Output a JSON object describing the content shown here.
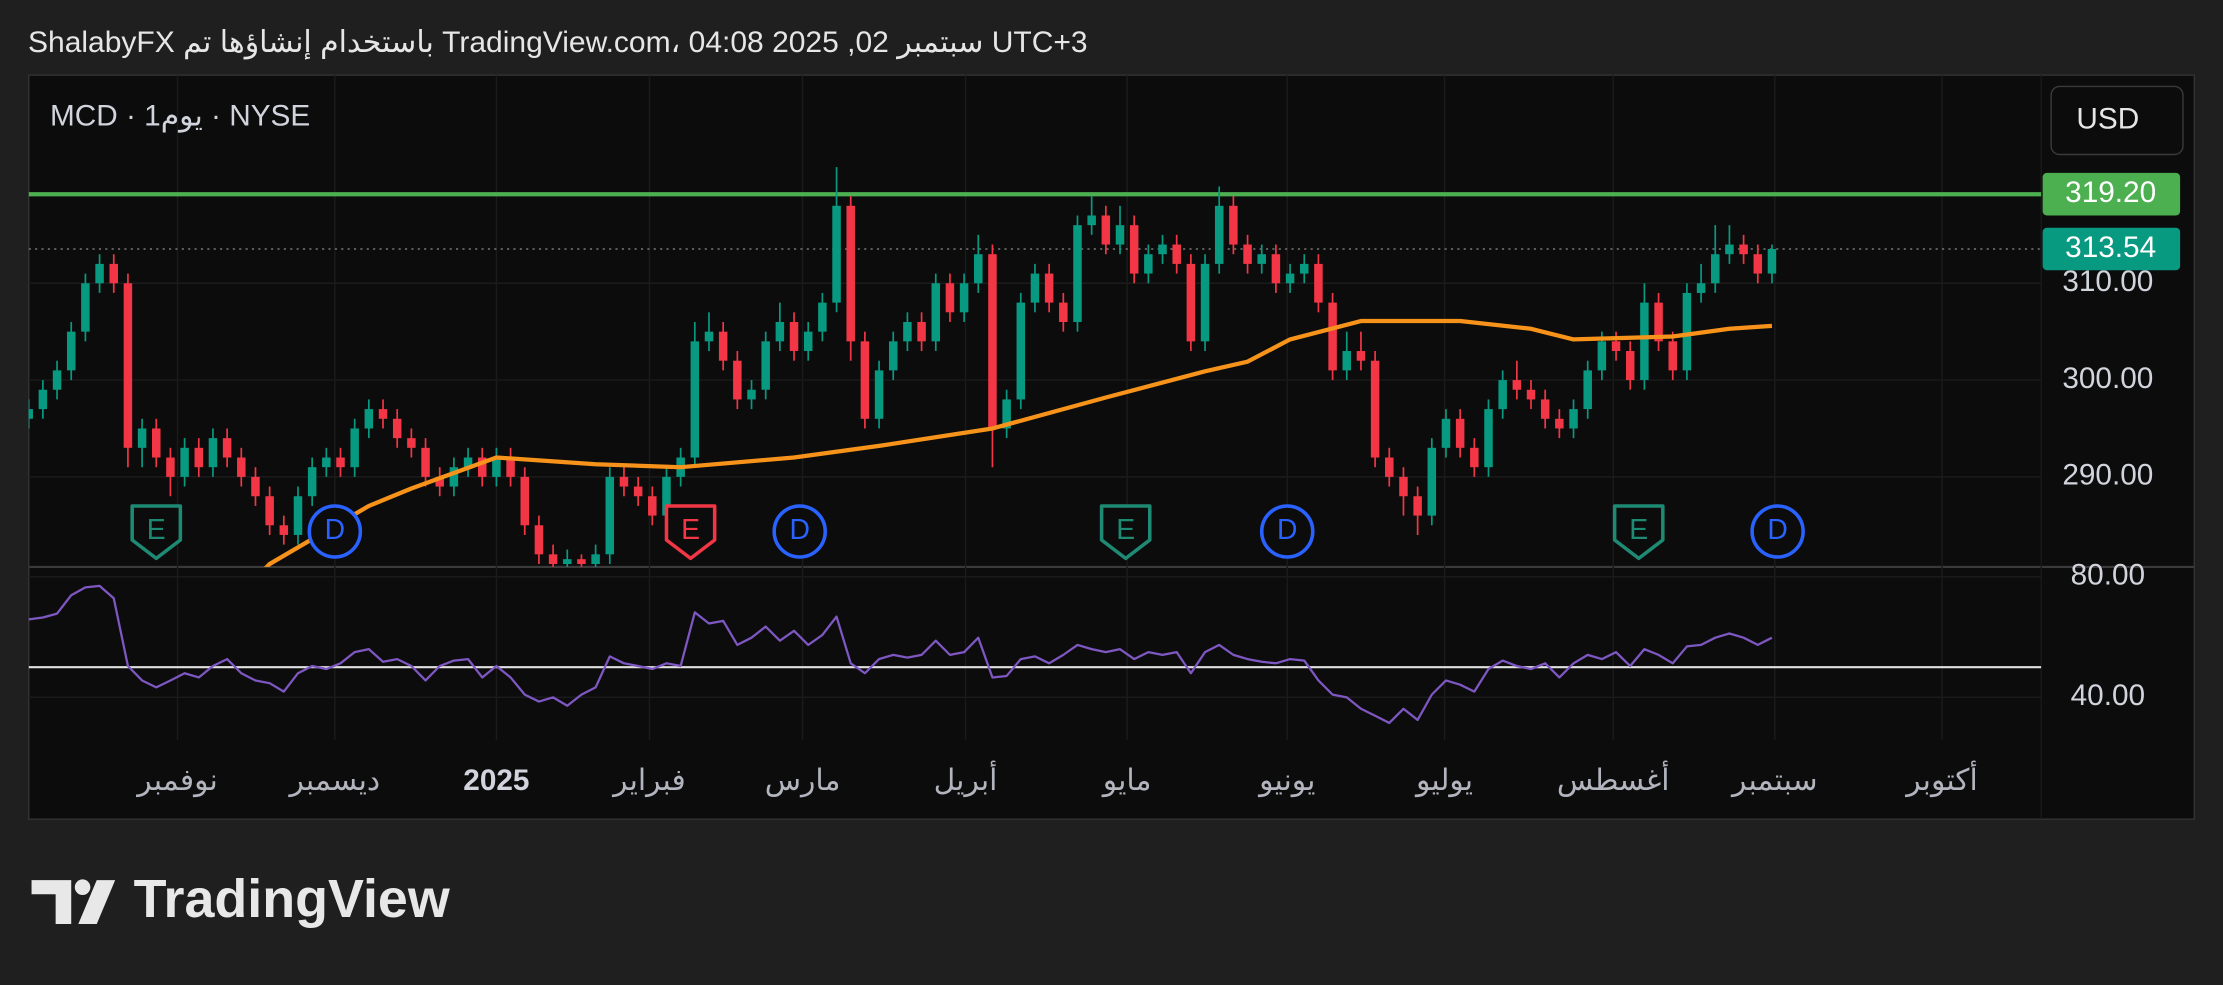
{
  "header": {
    "text": "UTC+3 سبتمبر 02, 2025 04:08 ،TradingView.com باستخدام إنشاؤها تم ShalabyFX"
  },
  "footer": {
    "brand": "TradingView"
  },
  "chart_data": [
    {
      "type": "candlestick",
      "symbol": "MCD · 1يوم · NYSE",
      "currency": "USD",
      "xlim": [
        0,
        142
      ],
      "xticks": [
        {
          "value": 10.5,
          "label": "نوفمبر"
        },
        {
          "value": 21.6,
          "label": "ديسمبر"
        },
        {
          "value": 33,
          "label": "2025"
        },
        {
          "value": 43.8,
          "label": "فبراير"
        },
        {
          "value": 54.6,
          "label": "مارس"
        },
        {
          "value": 66.1,
          "label": "أبريل"
        },
        {
          "value": 77.5,
          "label": "مايو"
        },
        {
          "value": 88.8,
          "label": "يونيو"
        },
        {
          "value": 99.9,
          "label": "يوليو"
        },
        {
          "value": 111.8,
          "label": "أغسطس"
        },
        {
          "value": 123.2,
          "label": "سبتمبر"
        },
        {
          "value": 135,
          "label": "أكتوبر"
        }
      ],
      "ylim": [
        280.7,
        331.5
      ],
      "yticks": [
        {
          "value": 290,
          "label": "290.00"
        },
        {
          "value": 300,
          "label": "300.00"
        },
        {
          "value": 310,
          "label": "310.00"
        }
      ],
      "grid": true,
      "up_color": "#089981",
      "down_color": "#f23645",
      "last_color": "#089981",
      "ohlc": [
        [
          296,
          298,
          295,
          297
        ],
        [
          297,
          300,
          296,
          299
        ],
        [
          299,
          302,
          298,
          301
        ],
        [
          301,
          306,
          300,
          305
        ],
        [
          305,
          311,
          304,
          310
        ],
        [
          310,
          313,
          309,
          312
        ],
        [
          312,
          313,
          309,
          310
        ],
        [
          310,
          311,
          291,
          293
        ],
        [
          293,
          296,
          291,
          295
        ],
        [
          295,
          296,
          291,
          292
        ],
        [
          292,
          293,
          288,
          290
        ],
        [
          290,
          294,
          289,
          293
        ],
        [
          293,
          294,
          290,
          291
        ],
        [
          291,
          295,
          290,
          294
        ],
        [
          294,
          295,
          291,
          292
        ],
        [
          292,
          293,
          289,
          290
        ],
        [
          290,
          291,
          287,
          288
        ],
        [
          288,
          289,
          284,
          285
        ],
        [
          285,
          286,
          283,
          284
        ],
        [
          284,
          289,
          283,
          288
        ],
        [
          288,
          292,
          287,
          291
        ],
        [
          291,
          293,
          290,
          292
        ],
        [
          292,
          293,
          290,
          291
        ],
        [
          291,
          296,
          290,
          295
        ],
        [
          295,
          298,
          294,
          297
        ],
        [
          297,
          298,
          295,
          296
        ],
        [
          296,
          297,
          293,
          294
        ],
        [
          294,
          295,
          292,
          293
        ],
        [
          293,
          294,
          289,
          290
        ],
        [
          290,
          291,
          288,
          289
        ],
        [
          289,
          292,
          288,
          291
        ],
        [
          291,
          293,
          290,
          292
        ],
        [
          292,
          293,
          289,
          290
        ],
        [
          290,
          293,
          289,
          292
        ],
        [
          292,
          293,
          289,
          290
        ],
        [
          290,
          291,
          284,
          285
        ],
        [
          285,
          286,
          281,
          282
        ],
        [
          282,
          283,
          280,
          281
        ],
        [
          281,
          282.5,
          280.5,
          281.5
        ],
        [
          281.5,
          282,
          280,
          281
        ],
        [
          281,
          283,
          280,
          282
        ],
        [
          282,
          291,
          281,
          290
        ],
        [
          290,
          291,
          288,
          289
        ],
        [
          289,
          290,
          287,
          288
        ],
        [
          288,
          289,
          285,
          286
        ],
        [
          286,
          291,
          285,
          290
        ],
        [
          290,
          293,
          289,
          292
        ],
        [
          292,
          306,
          291,
          304
        ],
        [
          304,
          307,
          303,
          305
        ],
        [
          305,
          306,
          301,
          302
        ],
        [
          302,
          303,
          297,
          298
        ],
        [
          298,
          300,
          297,
          299
        ],
        [
          299,
          305,
          298,
          304
        ],
        [
          304,
          308,
          303,
          306
        ],
        [
          306,
          307,
          302,
          303
        ],
        [
          303,
          306,
          302,
          305
        ],
        [
          305,
          309,
          304,
          308
        ],
        [
          308,
          322,
          307,
          318
        ],
        [
          318,
          319,
          302,
          304
        ],
        [
          304,
          305,
          295,
          296
        ],
        [
          296,
          302,
          295,
          301
        ],
        [
          301,
          305,
          300,
          304
        ],
        [
          304,
          307,
          303,
          306
        ],
        [
          306,
          307,
          303,
          304
        ],
        [
          304,
          311,
          303,
          310
        ],
        [
          310,
          311,
          306,
          307
        ],
        [
          307,
          311,
          306,
          310
        ],
        [
          310,
          315,
          309,
          313
        ],
        [
          313,
          314,
          291,
          295
        ],
        [
          295,
          299,
          294,
          298
        ],
        [
          298,
          309,
          297,
          308
        ],
        [
          308,
          312,
          307,
          311
        ],
        [
          311,
          312,
          307,
          308
        ],
        [
          308,
          309,
          305,
          306
        ],
        [
          306,
          317,
          305,
          316
        ],
        [
          316,
          319,
          315,
          317
        ],
        [
          317,
          318,
          313,
          314
        ],
        [
          314,
          318,
          313,
          316
        ],
        [
          316,
          317,
          310,
          311
        ],
        [
          311,
          314,
          310,
          313
        ],
        [
          313,
          315,
          312,
          314
        ],
        [
          314,
          315,
          311,
          312
        ],
        [
          312,
          313,
          303,
          304
        ],
        [
          304,
          313,
          303,
          312
        ],
        [
          312,
          320,
          311,
          318
        ],
        [
          318,
          319,
          313,
          314
        ],
        [
          314,
          315,
          311,
          312
        ],
        [
          312,
          314,
          311,
          313
        ],
        [
          313,
          314,
          309,
          310
        ],
        [
          310,
          312,
          309,
          311
        ],
        [
          311,
          313,
          310,
          312
        ],
        [
          312,
          313,
          307,
          308
        ],
        [
          308,
          309,
          300,
          301
        ],
        [
          301,
          305,
          300,
          303
        ],
        [
          303,
          305,
          301,
          302
        ],
        [
          302,
          303,
          291,
          292
        ],
        [
          292,
          293,
          289,
          290
        ],
        [
          290,
          291,
          286,
          288
        ],
        [
          288,
          289,
          284,
          286
        ],
        [
          286,
          294,
          285,
          293
        ],
        [
          293,
          297,
          292,
          296
        ],
        [
          296,
          297,
          292,
          293
        ],
        [
          293,
          294,
          290,
          291
        ],
        [
          291,
          298,
          290,
          297
        ],
        [
          297,
          301,
          296,
          300
        ],
        [
          300,
          302,
          298,
          299
        ],
        [
          299,
          300,
          297,
          298
        ],
        [
          298,
          299,
          295,
          296
        ],
        [
          296,
          297,
          294,
          295
        ],
        [
          295,
          298,
          294,
          297
        ],
        [
          297,
          302,
          296,
          301
        ],
        [
          301,
          305,
          300,
          304
        ],
        [
          304,
          305,
          302,
          303
        ],
        [
          303,
          304,
          299,
          300
        ],
        [
          300,
          310,
          299,
          308
        ],
        [
          308,
          309,
          303,
          304
        ],
        [
          304,
          305,
          300,
          301
        ],
        [
          301,
          310,
          300,
          309
        ],
        [
          309,
          312,
          308,
          310
        ],
        [
          310,
          316,
          309,
          313
        ],
        [
          313,
          316,
          312,
          314
        ],
        [
          314,
          315,
          312,
          313
        ],
        [
          313,
          314,
          310,
          311
        ],
        [
          311,
          314,
          310,
          313.54
        ]
      ],
      "ma": {
        "color": "#f7931a",
        "x": [
          16,
          17,
          24,
          27,
          33,
          40,
          46,
          54,
          60,
          68,
          76,
          83,
          86,
          89,
          94,
          101,
          106,
          109,
          116,
          120,
          123
        ],
        "values": [
          279.5,
          281,
          287,
          288.8,
          292,
          291.3,
          291,
          292,
          293.2,
          295,
          298.2,
          300.9,
          301.9,
          304.2,
          306.1,
          306.1,
          305.3,
          304.2,
          304.5,
          305.3,
          305.6
        ]
      },
      "hline": {
        "value": 319.2,
        "label": "319.20",
        "color": "#4caf50"
      },
      "events": [
        {
          "x": 9,
          "label": "E",
          "color": "#1e8a74"
        },
        {
          "x": 21.6,
          "label": "D",
          "color": "#2962ff"
        },
        {
          "x": 46.7,
          "label": "E",
          "color": "#f23645"
        },
        {
          "x": 54.4,
          "label": "D",
          "color": "#2962ff"
        },
        {
          "x": 77.4,
          "label": "E",
          "color": "#1e8a74"
        },
        {
          "x": 88.8,
          "label": "D",
          "color": "#2962ff"
        },
        {
          "x": 113.6,
          "label": "E",
          "color": "#1e8a74"
        },
        {
          "x": 123.4,
          "label": "D",
          "color": "#2962ff"
        }
      ]
    },
    {
      "type": "line",
      "color": "#7e57c2",
      "xlim": [
        0,
        142
      ],
      "ylim": [
        25.9,
        83.3
      ],
      "yticks": [
        {
          "value": 40,
          "label": "40.00"
        },
        {
          "value": 80,
          "label": "80.00"
        }
      ],
      "grid": true,
      "hline": 50,
      "values": [
        65.9,
        66.5,
        67.8,
        73.9,
        76.5,
        77,
        72.9,
        50.4,
        45.6,
        43.3,
        45.6,
        48,
        46.6,
        50.4,
        52.7,
        48,
        45.6,
        44.7,
        41.9,
        48,
        50.4,
        49.4,
        51.3,
        55,
        56,
        51.8,
        52.7,
        50.4,
        45.6,
        50.4,
        52.2,
        52.7,
        46.6,
        50.4,
        46.6,
        40.9,
        38.6,
        40,
        37.2,
        40.9,
        43.3,
        53.6,
        51.3,
        50.4,
        49.4,
        51.3,
        50.4,
        68.2,
        64.5,
        65.4,
        57.4,
        59.8,
        63.5,
        58.8,
        62.1,
        57.4,
        60.7,
        66.8,
        51.3,
        48,
        52.7,
        54.1,
        53.2,
        54.1,
        58.8,
        54.1,
        55,
        59.8,
        46.6,
        47.1,
        52.7,
        53.6,
        51.3,
        54.1,
        57.4,
        56,
        55,
        56,
        52.7,
        55,
        54.1,
        55,
        48,
        55,
        57.4,
        54.1,
        52.7,
        51.8,
        51.3,
        52.7,
        52.2,
        45.6,
        40.9,
        40,
        36.2,
        33.9,
        31.5,
        36.2,
        32.5,
        40.9,
        45.6,
        44.2,
        41.9,
        49.4,
        52.2,
        50.4,
        49.4,
        51.3,
        46.6,
        51.3,
        54.1,
        52.7,
        55,
        50.4,
        56,
        54.1,
        51.3,
        56.9,
        57.4,
        59.8,
        61.2,
        59.8,
        57.4,
        59.8
      ]
    }
  ]
}
